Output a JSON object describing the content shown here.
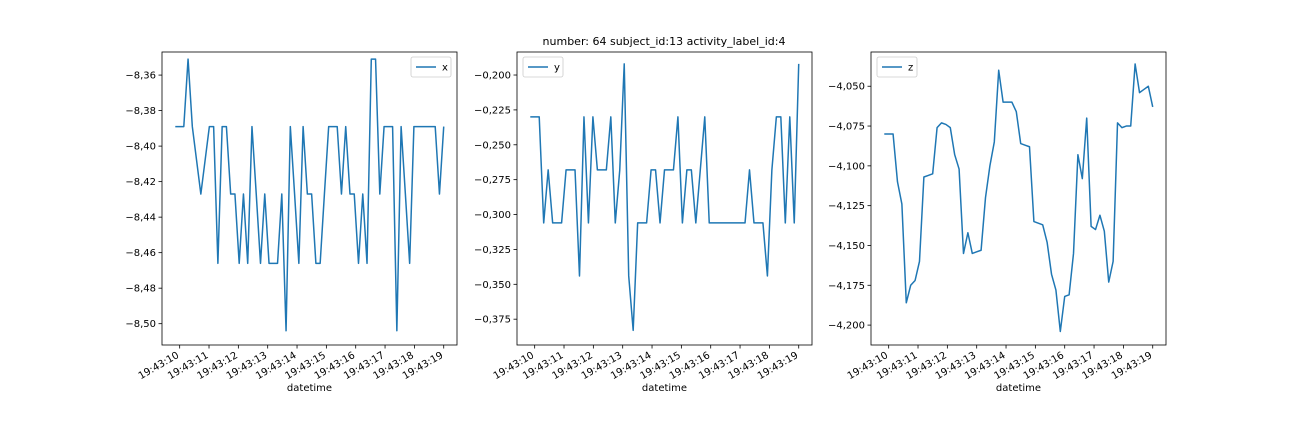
{
  "figure": {
    "title": "number: 64 subject_id:13 activity_label_id:4",
    "line_color": "#1f77b4"
  },
  "chart_data": [
    {
      "type": "line",
      "xlabel": "datetime",
      "ylabel": "",
      "legend": "top-right",
      "grid": false,
      "x_start": "19:43:09.85",
      "x_end": "19:43:19.00",
      "xticks": [
        "19:43:10",
        "19:43:11",
        "19:43:12",
        "19:43:13",
        "19:43:14",
        "19:43:15",
        "19:43:16",
        "19:43:17",
        "19:43:18",
        "19:43:19"
      ],
      "ylim": [
        -8.512,
        -8.347
      ],
      "yticks": [
        "−8,36",
        "−8,38",
        "−8,40",
        "−8,42",
        "−8,44",
        "−8,46",
        "−8,48",
        "−8,50"
      ],
      "ytick_values": [
        -8.36,
        -8.38,
        -8.4,
        -8.42,
        -8.44,
        -8.46,
        -8.48,
        -8.5
      ],
      "series": [
        {
          "name": "x",
          "values": [
            -8.389,
            -8.389,
            -8.389,
            -8.351,
            -8.389,
            -8.408,
            -8.427,
            -8.408,
            -8.389,
            -8.389,
            -8.466,
            -8.389,
            -8.389,
            -8.427,
            -8.427,
            -8.466,
            -8.427,
            -8.466,
            -8.389,
            -8.427,
            -8.466,
            -8.427,
            -8.466,
            -8.466,
            -8.466,
            -8.427,
            -8.504,
            -8.389,
            -8.427,
            -8.466,
            -8.389,
            -8.427,
            -8.427,
            -8.466,
            -8.466,
            -8.427,
            -8.389,
            -8.389,
            -8.389,
            -8.427,
            -8.389,
            -8.427,
            -8.427,
            -8.466,
            -8.427,
            -8.466,
            -8.351,
            -8.351,
            -8.427,
            -8.389,
            -8.389,
            -8.389,
            -8.504,
            -8.389,
            -8.427,
            -8.466,
            -8.389,
            -8.389,
            -8.389,
            -8.389,
            -8.389,
            -8.389,
            -8.427,
            -8.389
          ]
        }
      ]
    },
    {
      "type": "line",
      "xlabel": "datetime",
      "ylabel": "",
      "legend": "top-left",
      "grid": false,
      "x_start": "19:43:09.85",
      "x_end": "19:43:19.00",
      "xticks": [
        "19:43:10",
        "19:43:11",
        "19:43:12",
        "19:43:13",
        "19:43:14",
        "19:43:15",
        "19:43:16",
        "19:43:17",
        "19:43:18",
        "19:43:19"
      ],
      "ylim": [
        -0.3935,
        -0.1835
      ],
      "yticks": [
        "−0,200",
        "−0,225",
        "−0,250",
        "−0,275",
        "−0,300",
        "−0,325",
        "−0,350",
        "−0,375"
      ],
      "ytick_values": [
        -0.2,
        -0.225,
        -0.25,
        -0.275,
        -0.3,
        -0.325,
        -0.35,
        -0.375
      ],
      "series": [
        {
          "name": "y",
          "values": [
            -0.23,
            -0.23,
            -0.23,
            -0.306,
            -0.268,
            -0.306,
            -0.306,
            -0.306,
            -0.268,
            -0.268,
            -0.268,
            -0.344,
            -0.23,
            -0.306,
            -0.23,
            -0.268,
            -0.268,
            -0.268,
            -0.23,
            -0.306,
            -0.268,
            -0.192,
            -0.344,
            -0.383,
            -0.306,
            -0.306,
            -0.306,
            -0.268,
            -0.268,
            -0.306,
            -0.268,
            -0.268,
            -0.268,
            -0.23,
            -0.306,
            -0.268,
            -0.268,
            -0.306,
            -0.268,
            -0.23,
            -0.306,
            -0.306,
            -0.306,
            -0.306,
            -0.306,
            -0.306,
            -0.306,
            -0.306,
            -0.306,
            -0.268,
            -0.306,
            -0.306,
            -0.306,
            -0.344,
            -0.268,
            -0.23,
            -0.23,
            -0.306,
            -0.23,
            -0.306,
            -0.192
          ]
        }
      ]
    },
    {
      "type": "line",
      "xlabel": "datetime",
      "ylabel": "",
      "legend": "top-left",
      "grid": false,
      "x_start": "19:43:09.85",
      "x_end": "19:43:19.00",
      "xticks": [
        "19:43:10",
        "19:43:11",
        "19:43:12",
        "19:43:13",
        "19:43:14",
        "19:43:15",
        "19:43:16",
        "19:43:17",
        "19:43:18",
        "19:43:19"
      ],
      "ylim": [
        -4.2125,
        -4.0285
      ],
      "yticks": [
        "−4,050",
        "−4,075",
        "−4,100",
        "−4,125",
        "−4,150",
        "−4,175",
        "−4,200"
      ],
      "ytick_values": [
        -4.05,
        -4.075,
        -4.1,
        -4.125,
        -4.15,
        -4.175,
        -4.2
      ],
      "series": [
        {
          "name": "z",
          "values": [
            -4.08,
            -4.08,
            -4.08,
            -4.11,
            -4.124,
            -4.186,
            -4.175,
            -4.172,
            -4.16,
            -4.107,
            -4.106,
            -4.105,
            -4.076,
            -4.073,
            -4.074,
            -4.076,
            -4.093,
            -4.102,
            -4.155,
            -4.142,
            -4.155,
            -4.154,
            -4.153,
            -4.12,
            -4.1,
            -4.085,
            -4.04,
            -4.06,
            -4.06,
            -4.06,
            -4.066,
            -4.086,
            -4.087,
            -4.088,
            -4.135,
            -4.136,
            -4.137,
            -4.148,
            -4.168,
            -4.178,
            -4.204,
            -4.182,
            -4.181,
            -4.155,
            -4.093,
            -4.108,
            -4.07,
            -4.138,
            -4.14,
            -4.131,
            -4.141,
            -4.173,
            -4.16,
            -4.073,
            -4.076,
            -4.075,
            -4.075,
            -4.036,
            -4.054,
            -4.052,
            -4.05,
            -4.063
          ]
        }
      ]
    }
  ]
}
